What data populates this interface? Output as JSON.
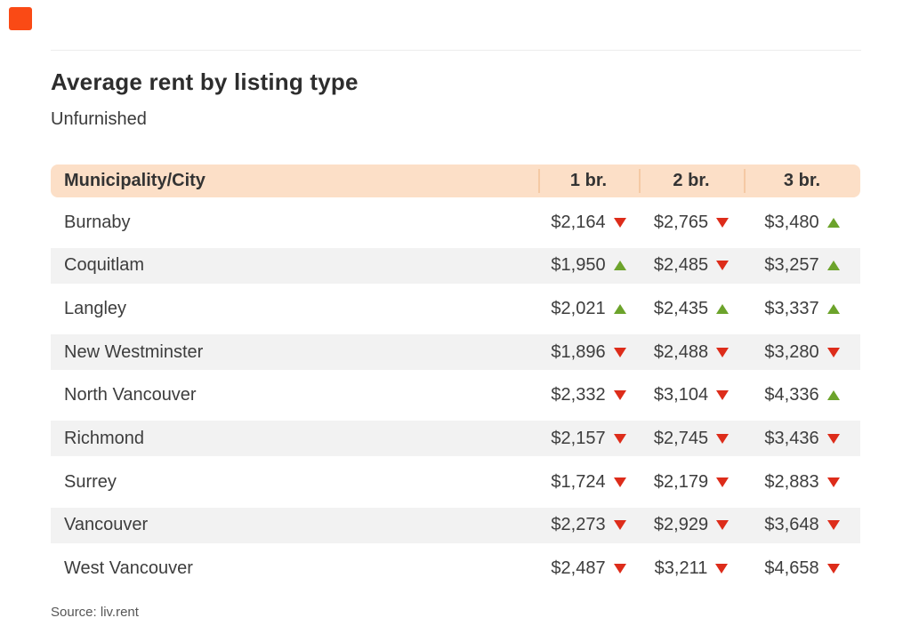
{
  "chart_data": {
    "type": "table",
    "title": "Average rent by listing type",
    "subtitle": "Unfurnished",
    "columns": [
      "Municipality/City",
      "1 br.",
      "2 br.",
      "3 br."
    ],
    "rows": [
      {
        "city": "Burnaby",
        "values": [
          2164,
          2765,
          3480
        ],
        "trends": [
          "down",
          "down",
          "up"
        ]
      },
      {
        "city": "Coquitlam",
        "values": [
          1950,
          2485,
          3257
        ],
        "trends": [
          "up",
          "down",
          "up"
        ]
      },
      {
        "city": "Langley",
        "values": [
          2021,
          2435,
          3337
        ],
        "trends": [
          "up",
          "up",
          "up"
        ]
      },
      {
        "city": "New Westminster",
        "values": [
          1896,
          2488,
          3280
        ],
        "trends": [
          "down",
          "down",
          "down"
        ]
      },
      {
        "city": "North Vancouver",
        "values": [
          2332,
          3104,
          4336
        ],
        "trends": [
          "down",
          "down",
          "up"
        ]
      },
      {
        "city": "Richmond",
        "values": [
          2157,
          2745,
          3436
        ],
        "trends": [
          "down",
          "down",
          "down"
        ]
      },
      {
        "city": "Surrey",
        "values": [
          1724,
          2179,
          2883
        ],
        "trends": [
          "down",
          "down",
          "down"
        ]
      },
      {
        "city": "Vancouver",
        "values": [
          2273,
          2929,
          3648
        ],
        "trends": [
          "down",
          "down",
          "down"
        ]
      },
      {
        "city": "West Vancouver",
        "values": [
          2487,
          3211,
          4658
        ],
        "trends": [
          "down",
          "down",
          "down"
        ]
      }
    ],
    "currency_prefix": "$",
    "source": "Source: liv.rent"
  },
  "colors": {
    "logo_accent": "#fa4a15",
    "header_bg": "#fcdfc7",
    "header_divider": "#f5c9a4",
    "row_alt_bg": "#f2f2f2",
    "trend_up": "#6ca32b",
    "trend_down": "#dd2c1a",
    "title_text": "#2d2d2d",
    "body_text": "#3d3d3d"
  }
}
